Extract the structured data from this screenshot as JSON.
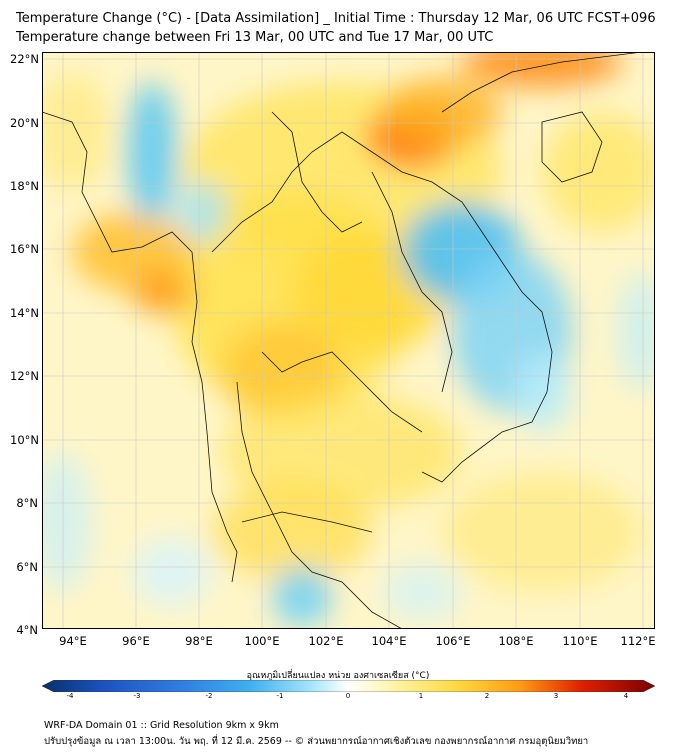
{
  "title_line1": "Temperature Change (°C) - [Data Assimilation] _ Initial Time : Thursday 12 Mar, 06 UTC FCST+096",
  "title_line2": "Temperature change between Fri 13 Mar, 00 UTC and Tue 17 Mar, 00 UTC",
  "lat_labels": [
    "22°N",
    "20°N",
    "18°N",
    "16°N",
    "14°N",
    "12°N",
    "10°N",
    "8°N",
    "6°N",
    "4°N"
  ],
  "lon_labels": [
    "94°E",
    "96°E",
    "98°E",
    "100°E",
    "102°E",
    "104°E",
    "106°E",
    "108°E",
    "110°E",
    "112°E"
  ],
  "colorbar": {
    "label": "อุณหภูมิเปลี่ยนแปลง หน่วย องศาเซลเซียส (°C)",
    "ticks": [
      "-4",
      "-3",
      "-2",
      "-1",
      "0",
      "1",
      "2",
      "3",
      "4"
    ],
    "colors": [
      "#08306b",
      "#1c52c0",
      "#2f7be0",
      "#3fb0f0",
      "#7fdcf8",
      "#ffffff",
      "#fff176",
      "#ffcc33",
      "#ff8800",
      "#e02000",
      "#7a0000"
    ]
  },
  "footer_line1": "WRF-DA Domain 01 :: Grid Resolution 9km x 9km",
  "footer_line2": "ปรับปรุงข้อมูล ณ เวลา 13:00น. วัน พฤ. ที่ 12 มี.ค. 2569 -- © ส่วนพยากรณ์อากาศเชิงตัวเลข กองพยากรณ์อากาศ กรมอุตุนิยมวิทยา"
}
